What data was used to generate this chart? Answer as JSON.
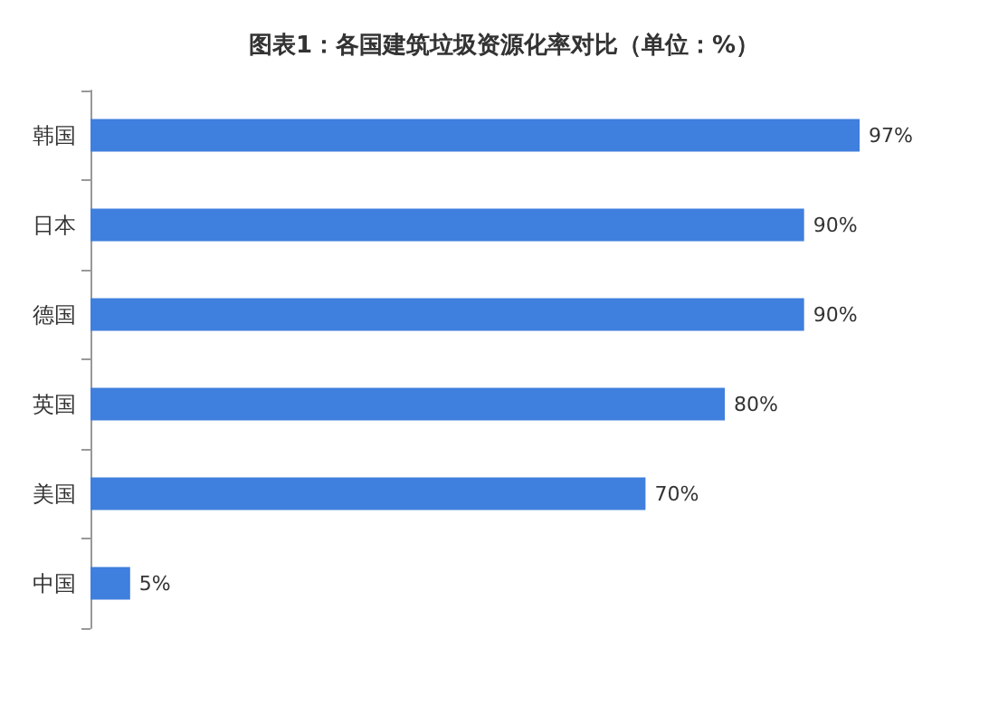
{
  "chart_data": {
    "type": "bar",
    "orientation": "horizontal",
    "title": "图表1：各国建筑垃圾资源化率对比（单位：%）",
    "categories": [
      "韩国",
      "日本",
      "德国",
      "英国",
      "美国",
      "中国"
    ],
    "values": [
      97,
      90,
      90,
      80,
      70,
      5
    ],
    "value_labels": [
      "97%",
      "90%",
      "90%",
      "80%",
      "70%",
      "5%"
    ],
    "color": "#3f7fdd"
  }
}
